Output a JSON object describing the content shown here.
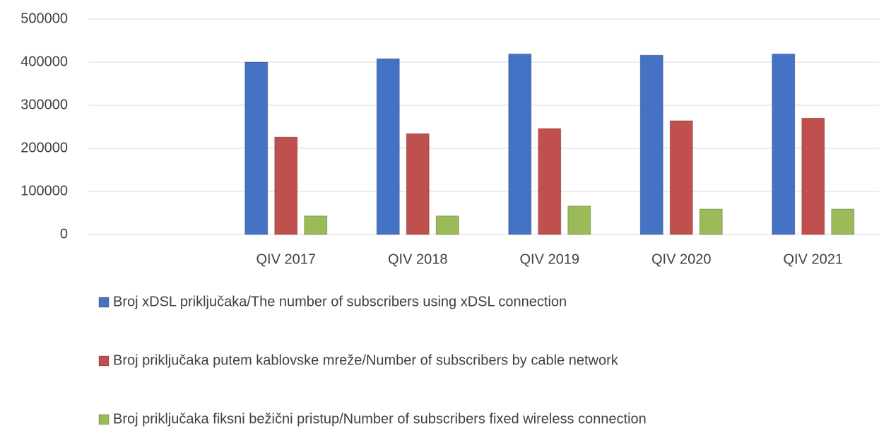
{
  "chart_data": {
    "type": "bar",
    "categories": [
      null,
      "QIV 2017",
      "QIV 2018",
      "QIV 2019",
      "QIV 2020",
      "QIV 2021"
    ],
    "series": [
      {
        "name": "Broj  xDSL priključaka/The number of subscribers using  xDSL connection",
        "color": "#4472c4",
        "values": [
          null,
          400000,
          408000,
          419000,
          416000,
          419000
        ]
      },
      {
        "name": "Broj priključaka putem  kablovske mreže/Number of subscribers by cable network",
        "color": "#c0504d",
        "values": [
          null,
          226000,
          234000,
          246000,
          264000,
          270000
        ]
      },
      {
        "name": "Broj priključaka fiksni bežični pristup/Number of subscribers fixed wireless connection",
        "color": "#9bbb59",
        "values": [
          null,
          43000,
          43000,
          66000,
          59000,
          59000
        ]
      }
    ],
    "ylim": [
      0,
      500000
    ],
    "yticks": [
      0,
      100000,
      200000,
      300000,
      400000,
      500000
    ],
    "grid": true,
    "legend": "bottom"
  }
}
